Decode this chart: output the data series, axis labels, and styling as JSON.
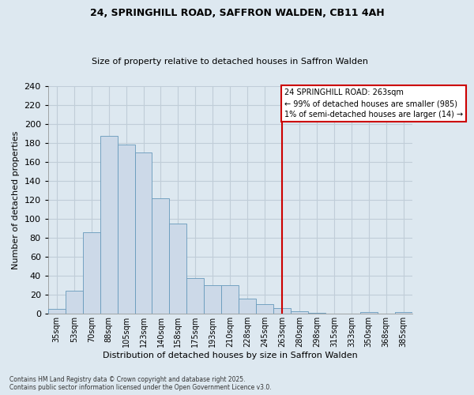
{
  "title": "24, SPRINGHILL ROAD, SAFFRON WALDEN, CB11 4AH",
  "subtitle": "Size of property relative to detached houses in Saffron Walden",
  "xlabel": "Distribution of detached houses by size in Saffron Walden",
  "ylabel": "Number of detached properties",
  "bar_values": [
    5,
    24,
    86,
    187,
    178,
    170,
    122,
    95,
    38,
    30,
    30,
    16,
    10,
    6,
    3,
    1,
    0,
    0,
    2,
    0,
    2
  ],
  "bar_labels": [
    "35sqm",
    "53sqm",
    "70sqm",
    "88sqm",
    "105sqm",
    "123sqm",
    "140sqm",
    "158sqm",
    "175sqm",
    "193sqm",
    "210sqm",
    "228sqm",
    "245sqm",
    "263sqm",
    "280sqm",
    "298sqm",
    "315sqm",
    "333sqm",
    "350sqm",
    "368sqm",
    "385sqm"
  ],
  "bar_color": "#ccd9e8",
  "bar_edge_color": "#6699bb",
  "annotation_text": "24 SPRINGHILL ROAD: 263sqm\n← 99% of detached houses are smaller (985)\n1% of semi-detached houses are larger (14) →",
  "vline_index": 13,
  "vline_color": "#cc0000",
  "background_color": "#dde8f0",
  "grid_color": "#c0cdd8",
  "footer_text": "Contains HM Land Registry data © Crown copyright and database right 2025.\nContains public sector information licensed under the Open Government Licence v3.0.",
  "ylim": [
    0,
    240
  ],
  "yticks": [
    0,
    20,
    40,
    60,
    80,
    100,
    120,
    140,
    160,
    180,
    200,
    220,
    240
  ],
  "title_fontsize": 9,
  "subtitle_fontsize": 8
}
